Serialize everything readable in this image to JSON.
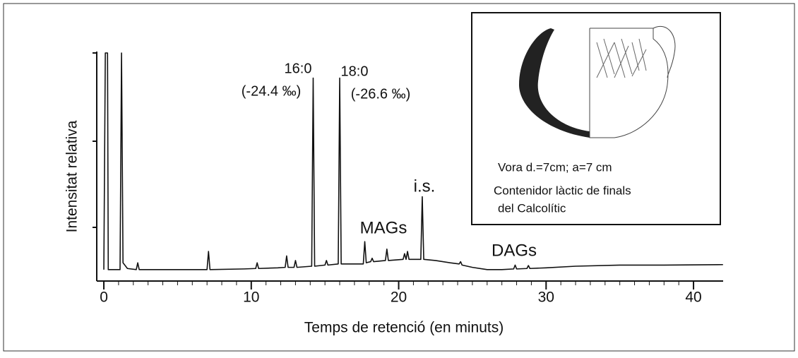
{
  "chart_data": {
    "type": "line",
    "xlabel": "Temps de retenció (en minuts)",
    "ylabel": "Intensitat relativa",
    "xlim": [
      -0.5,
      42
    ],
    "xticks": [
      0,
      10,
      20,
      30,
      40
    ],
    "ylim": [
      0,
      100
    ],
    "color": "#111111",
    "annotations": [
      "16:0",
      "(-24.4 ‰)",
      "18:0",
      "(-26.6 ‰)",
      "MAGs",
      "i.s.",
      "DAGs"
    ],
    "inset": [
      "Vora d.=7cm; a=7 cm",
      "Contenidor làctic de finals",
      "del Calcolític"
    ],
    "x": [
      0,
      0.1,
      0.25,
      0.3,
      1.1,
      1.2,
      1.3,
      1.6,
      2.2,
      2.3,
      2.4,
      5,
      7.0,
      7.1,
      7.2,
      9.5,
      10.3,
      10.4,
      10.5,
      11.8,
      12.3,
      12.4,
      12.5,
      12.9,
      13,
      13.1,
      14.1,
      14.2,
      14.3,
      15,
      15.1,
      15.2,
      15.9,
      16.0,
      16.1,
      17.6,
      17.7,
      17.8,
      18.1,
      18.2,
      18.3,
      19.1,
      19.2,
      19.3,
      20.3,
      20.4,
      20.5,
      20.6,
      20.7,
      21.5,
      21.6,
      21.7,
      22.5,
      23.5,
      24.1,
      24.2,
      24.3,
      25,
      26,
      27,
      27.8,
      27.9,
      28,
      28.7,
      28.8,
      28.9,
      30,
      32,
      35,
      38,
      42
    ],
    "values": [
      5,
      100,
      100,
      5,
      5,
      100,
      8,
      5.5,
      5,
      8,
      5,
      5,
      5,
      13,
      5,
      5.3,
      5.5,
      8,
      5.5,
      5.8,
      6,
      11,
      6,
      6,
      9,
      6,
      6.5,
      89,
      6.5,
      7,
      9,
      7,
      7.5,
      89,
      7.5,
      7.5,
      17.3,
      8,
      8.5,
      10,
      8.5,
      9,
      14,
      9,
      9.5,
      12,
      9.5,
      13,
      9.5,
      9.5,
      37,
      9.5,
      9,
      8,
      7.5,
      8.5,
      7,
      6,
      5,
      5,
      5.3,
      7,
      5.3,
      5.5,
      6.8,
      5.5,
      5.8,
      6.5,
      7,
      7,
      7.2
    ]
  }
}
